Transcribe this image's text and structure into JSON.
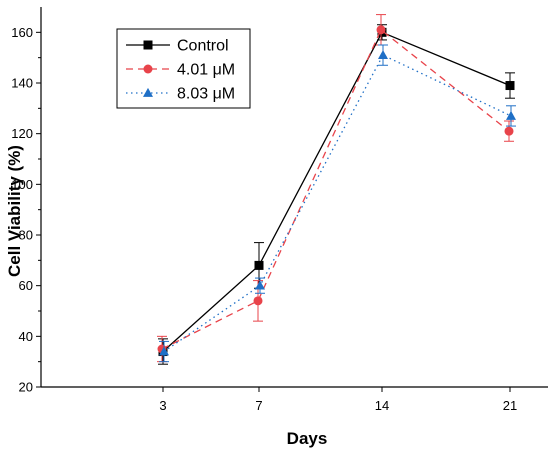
{
  "chart_data": {
    "type": "line",
    "title": "",
    "xlabel": "Days",
    "ylabel": "Cell Viability (%)",
    "categories": [
      "3",
      "7",
      "14",
      "21"
    ],
    "ylim": [
      20,
      170
    ],
    "yticks": [
      20,
      40,
      60,
      80,
      100,
      120,
      140,
      160
    ],
    "grid": false,
    "legend_position": "top-left",
    "series": [
      {
        "name": "Control",
        "color": "#000000",
        "marker": "square",
        "dash": "solid",
        "values": [
          34,
          68,
          160,
          139
        ],
        "errors": [
          5,
          9,
          3,
          5
        ]
      },
      {
        "name": "4.01 μM",
        "color": "#e8434a",
        "marker": "circle",
        "dash": "dashed",
        "values": [
          35,
          54,
          161,
          121
        ],
        "errors": [
          5,
          8,
          6,
          4
        ]
      },
      {
        "name": "8.03 μM",
        "color": "#1f6fc6",
        "marker": "triangle",
        "dash": "dotted",
        "values": [
          34,
          60,
          151,
          127
        ],
        "errors": [
          4,
          3,
          4,
          4
        ]
      }
    ]
  }
}
